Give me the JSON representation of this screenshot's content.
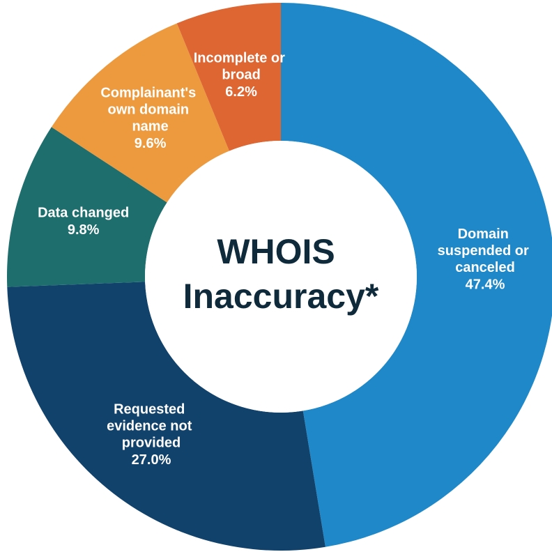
{
  "chart_data": {
    "type": "pie",
    "title": "WHOIS Inaccuracy*",
    "categories": [
      "Domain suspended or canceled",
      "Requested evidence not provided",
      "Data changed",
      "Complainant's own domain name",
      "Incomplete or broad"
    ],
    "values": [
      47.4,
      27.0,
      9.8,
      9.6,
      6.2
    ],
    "value_labels": [
      "47.4%",
      "27.0%",
      "9.8%",
      "9.6%",
      "6.2%"
    ],
    "colors": [
      "#1f88c9",
      "#11426b",
      "#1e6e6e",
      "#ed9a3e",
      "#dd6633"
    ]
  }
}
